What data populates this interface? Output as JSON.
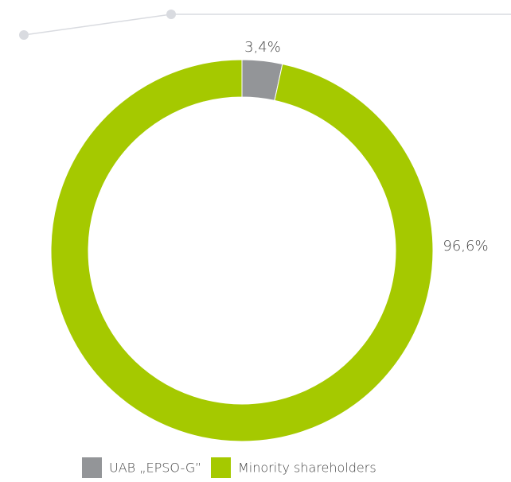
{
  "chart_data": {
    "type": "pie",
    "donut": true,
    "categories": [
      "UAB „EPSO-G”",
      "Minority shareholders"
    ],
    "values": [
      3.4,
      96.6
    ],
    "value_labels": [
      "3,4%",
      "96,6%"
    ],
    "colors": [
      "#939598",
      "#a5c900"
    ],
    "legend": "bottom"
  }
}
